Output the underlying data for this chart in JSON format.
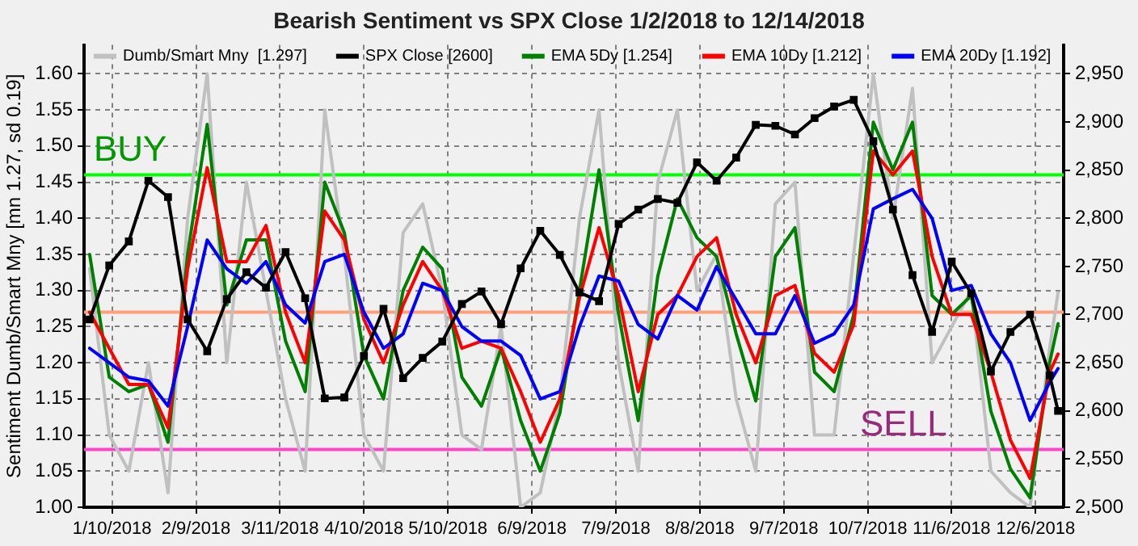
{
  "chart_data": {
    "type": "line",
    "title": "Bearish Sentiment vs SPX Close 1/2/2018 to 12/14/2018",
    "ylabel": "Sentiment Dumb/Smart Mny [mn 1.27, sd 0.19]",
    "x": [
      "2018-01-02",
      "2018-01-09",
      "2018-01-16",
      "2018-01-23",
      "2018-01-30",
      "2018-02-06",
      "2018-02-13",
      "2018-02-20",
      "2018-02-27",
      "2018-03-06",
      "2018-03-13",
      "2018-03-20",
      "2018-03-27",
      "2018-04-03",
      "2018-04-10",
      "2018-04-17",
      "2018-04-24",
      "2018-05-01",
      "2018-05-08",
      "2018-05-15",
      "2018-05-22",
      "2018-05-29",
      "2018-06-05",
      "2018-06-12",
      "2018-06-19",
      "2018-06-26",
      "2018-07-03",
      "2018-07-10",
      "2018-07-17",
      "2018-07-24",
      "2018-07-31",
      "2018-08-07",
      "2018-08-14",
      "2018-08-21",
      "2018-08-28",
      "2018-09-04",
      "2018-09-11",
      "2018-09-18",
      "2018-09-25",
      "2018-10-02",
      "2018-10-09",
      "2018-10-16",
      "2018-10-23",
      "2018-10-30",
      "2018-11-06",
      "2018-11-13",
      "2018-11-20",
      "2018-11-27",
      "2018-12-04",
      "2018-12-11",
      "2018-12-14"
    ],
    "series": [
      {
        "name": "Dumb/Smart Mny  [1.297]",
        "color": "#c0c0c0",
        "marker": "none",
        "values": [
          1.33,
          1.1,
          1.05,
          1.2,
          1.02,
          1.4,
          1.6,
          1.2,
          1.45,
          1.3,
          1.15,
          1.05,
          1.55,
          1.35,
          1.1,
          1.05,
          1.38,
          1.42,
          1.3,
          1.1,
          1.08,
          1.25,
          1.0,
          1.02,
          1.15,
          1.4,
          1.55,
          1.2,
          1.05,
          1.45,
          1.55,
          1.3,
          1.35,
          1.15,
          1.05,
          1.42,
          1.45,
          1.1,
          1.1,
          1.35,
          1.6,
          1.4,
          1.58,
          1.2,
          1.25,
          1.3,
          1.05,
          1.02,
          1.0,
          1.22,
          1.297
        ]
      },
      {
        "name": "SPX Close [2600]",
        "color": "#000000",
        "axis": "y2",
        "marker": "square",
        "values": [
          2695,
          2751,
          2776,
          2839,
          2822,
          2695,
          2662,
          2716,
          2744,
          2728,
          2765,
          2717,
          2613,
          2614,
          2657,
          2706,
          2634,
          2655,
          2672,
          2711,
          2724,
          2690,
          2748,
          2787,
          2762,
          2723,
          2714,
          2794,
          2809,
          2820,
          2816,
          2858,
          2839,
          2863,
          2897,
          2896,
          2887,
          2904,
          2916,
          2923,
          2880,
          2809,
          2741,
          2682,
          2755,
          2722,
          2641,
          2682,
          2700,
          2637,
          2600
        ]
      },
      {
        "name": "EMA 5Dy [1.254]",
        "color": "#008000",
        "marker": "none",
        "values": [
          1.35,
          1.18,
          1.16,
          1.17,
          1.09,
          1.35,
          1.53,
          1.28,
          1.37,
          1.37,
          1.23,
          1.16,
          1.45,
          1.38,
          1.21,
          1.15,
          1.3,
          1.36,
          1.33,
          1.18,
          1.14,
          1.22,
          1.12,
          1.05,
          1.13,
          1.3,
          1.467,
          1.267,
          1.12,
          1.32,
          1.427,
          1.373,
          1.347,
          1.24,
          1.147,
          1.347,
          1.387,
          1.187,
          1.16,
          1.267,
          1.533,
          1.467,
          1.533,
          1.293,
          1.267,
          1.293,
          1.133,
          1.053,
          1.013,
          1.2,
          1.254
        ]
      },
      {
        "name": "EMA 10Dy [1.212]",
        "color": "#ff0000",
        "marker": "none",
        "values": [
          1.27,
          1.22,
          1.17,
          1.17,
          1.11,
          1.33,
          1.47,
          1.34,
          1.34,
          1.39,
          1.27,
          1.2,
          1.41,
          1.37,
          1.26,
          1.2,
          1.28,
          1.34,
          1.3,
          1.22,
          1.23,
          1.22,
          1.16,
          1.09,
          1.15,
          1.29,
          1.387,
          1.293,
          1.16,
          1.267,
          1.293,
          1.347,
          1.373,
          1.267,
          1.2,
          1.293,
          1.307,
          1.213,
          1.187,
          1.253,
          1.493,
          1.46,
          1.493,
          1.347,
          1.267,
          1.267,
          1.187,
          1.093,
          1.04,
          1.187,
          1.212
        ]
      },
      {
        "name": "EMA 20Dy [1.192]",
        "color": "#0000ff",
        "marker": "none",
        "values": [
          1.22,
          1.2,
          1.18,
          1.175,
          1.14,
          1.25,
          1.37,
          1.33,
          1.31,
          1.34,
          1.28,
          1.255,
          1.34,
          1.35,
          1.27,
          1.22,
          1.24,
          1.31,
          1.3,
          1.25,
          1.23,
          1.23,
          1.21,
          1.15,
          1.16,
          1.25,
          1.32,
          1.313,
          1.253,
          1.233,
          1.293,
          1.273,
          1.333,
          1.287,
          1.24,
          1.24,
          1.293,
          1.227,
          1.24,
          1.28,
          1.413,
          1.427,
          1.44,
          1.4,
          1.3,
          1.307,
          1.24,
          1.2,
          1.12,
          1.173,
          1.192
        ]
      }
    ],
    "xlim": [
      "2017-12-31",
      "2018-12-16"
    ],
    "xticks": [
      {
        "value": "2018-01-10",
        "label": "1/10/2018"
      },
      {
        "value": "2018-02-09",
        "label": "2/9/2018"
      },
      {
        "value": "2018-03-11",
        "label": "3/11/2018"
      },
      {
        "value": "2018-04-10",
        "label": "4/10/2018"
      },
      {
        "value": "2018-05-10",
        "label": "5/10/2018"
      },
      {
        "value": "2018-06-09",
        "label": "6/9/2018"
      },
      {
        "value": "2018-07-09",
        "label": "7/9/2018"
      },
      {
        "value": "2018-08-08",
        "label": "8/8/2018"
      },
      {
        "value": "2018-09-07",
        "label": "9/7/2018"
      },
      {
        "value": "2018-10-07",
        "label": "10/7/2018"
      },
      {
        "value": "2018-11-06",
        "label": "11/6/2018"
      },
      {
        "value": "2018-12-06",
        "label": "12/6/2018"
      }
    ],
    "ylim": [
      1.0,
      1.64
    ],
    "yticks": [
      {
        "value": 1.0,
        "label": "1.00"
      },
      {
        "value": 1.05,
        "label": "1.05"
      },
      {
        "value": 1.1,
        "label": "1.10"
      },
      {
        "value": 1.15,
        "label": "1.15"
      },
      {
        "value": 1.2,
        "label": "1.20"
      },
      {
        "value": 1.25,
        "label": "1.25"
      },
      {
        "value": 1.3,
        "label": "1.30"
      },
      {
        "value": 1.35,
        "label": "1.35"
      },
      {
        "value": 1.4,
        "label": "1.40"
      },
      {
        "value": 1.45,
        "label": "1.45"
      },
      {
        "value": 1.5,
        "label": "1.50"
      },
      {
        "value": 1.55,
        "label": "1.55"
      },
      {
        "value": 1.6,
        "label": "1.60"
      }
    ],
    "y2lim": [
      2500,
      2980
    ],
    "y2ticks": [
      {
        "value": 2500,
        "label": "2,500"
      },
      {
        "value": 2550,
        "label": "2,550"
      },
      {
        "value": 2600,
        "label": "2,600"
      },
      {
        "value": 2650,
        "label": "2,650"
      },
      {
        "value": 2700,
        "label": "2,700"
      },
      {
        "value": 2750,
        "label": "2,750"
      },
      {
        "value": 2800,
        "label": "2,800"
      },
      {
        "value": 2850,
        "label": "2,850"
      },
      {
        "value": 2900,
        "label": "2,900"
      },
      {
        "value": 2950,
        "label": "2,950"
      }
    ],
    "ref_lines": [
      {
        "axis": "y",
        "value": 1.46,
        "label": "BUY",
        "color": "#00ff00"
      },
      {
        "axis": "y",
        "value": 1.27,
        "label": null,
        "color": "#ffa07a"
      },
      {
        "axis": "y",
        "value": 1.08,
        "label": "SELL",
        "color": "#ff44cc"
      }
    ],
    "grid": true,
    "legend": "top left",
    "line_style": "solid"
  }
}
